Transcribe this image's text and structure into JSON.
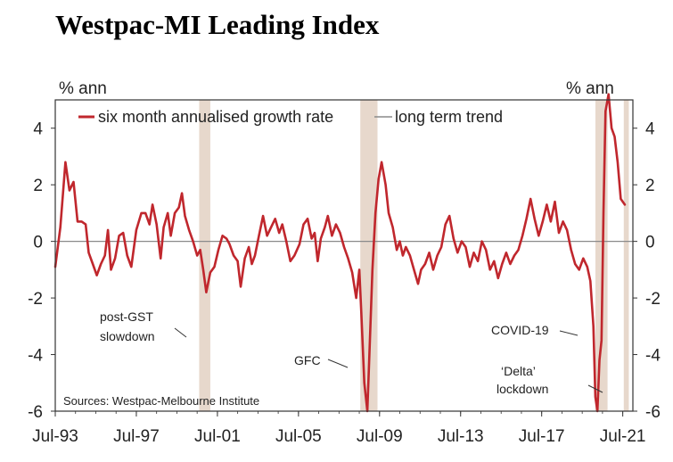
{
  "chart_data": {
    "type": "line",
    "title": "Westpac-MI Leading Index",
    "title_color": "#e02020",
    "left_unit": "% ann",
    "right_unit": "% ann",
    "ylim": [
      -6,
      5
    ],
    "yticks": [
      4,
      2,
      0,
      -2,
      -4,
      -6
    ],
    "xlim": [
      1993.5,
      2022.0
    ],
    "xticks": [
      {
        "label": "Jul-93",
        "x": 1993.5
      },
      {
        "label": "Jul-97",
        "x": 1997.5
      },
      {
        "label": "Jul-01",
        "x": 2001.5
      },
      {
        "label": "Jul-05",
        "x": 2005.5
      },
      {
        "label": "Jul-09",
        "x": 2009.5
      },
      {
        "label": "Jul-13",
        "x": 2013.5
      },
      {
        "label": "Jul-17",
        "x": 2017.5
      },
      {
        "label": "Jul-21",
        "x": 2021.5
      }
    ],
    "legend": [
      {
        "name": "six month annualised growth rate",
        "color": "#c0272d"
      },
      {
        "name": "long term trend",
        "color": "#8a8a8a"
      }
    ],
    "trend_value": 0,
    "shaded_periods": [
      {
        "start": 2000.6,
        "end": 2001.15
      },
      {
        "start": 2008.55,
        "end": 2009.4
      },
      {
        "start": 2020.15,
        "end": 2020.75
      },
      {
        "start": 2021.55,
        "end": 2021.8
      }
    ],
    "shade_color": "#e7d8cc",
    "series": [
      {
        "name": "six month annualised growth rate",
        "color": "#c0272d",
        "points": [
          [
            1993.5,
            -0.9
          ],
          [
            1993.75,
            0.5
          ],
          [
            1994.0,
            2.8
          ],
          [
            1994.2,
            1.8
          ],
          [
            1994.4,
            2.1
          ],
          [
            1994.6,
            0.7
          ],
          [
            1994.8,
            0.7
          ],
          [
            1995.0,
            0.6
          ],
          [
            1995.15,
            -0.4
          ],
          [
            1995.35,
            -0.8
          ],
          [
            1995.55,
            -1.2
          ],
          [
            1995.75,
            -0.8
          ],
          [
            1995.95,
            -0.5
          ],
          [
            1996.1,
            0.4
          ],
          [
            1996.25,
            -1.0
          ],
          [
            1996.45,
            -0.6
          ],
          [
            1996.65,
            0.2
          ],
          [
            1996.85,
            0.3
          ],
          [
            1997.05,
            -0.5
          ],
          [
            1997.25,
            -0.9
          ],
          [
            1997.5,
            0.4
          ],
          [
            1997.75,
            1.0
          ],
          [
            1997.95,
            1.0
          ],
          [
            1998.15,
            0.6
          ],
          [
            1998.3,
            1.3
          ],
          [
            1998.5,
            0.6
          ],
          [
            1998.7,
            -0.6
          ],
          [
            1998.85,
            0.5
          ],
          [
            1999.05,
            1.0
          ],
          [
            1999.2,
            0.2
          ],
          [
            1999.4,
            1.0
          ],
          [
            1999.6,
            1.2
          ],
          [
            1999.75,
            1.7
          ],
          [
            1999.9,
            0.9
          ],
          [
            2000.1,
            0.4
          ],
          [
            2000.3,
            0.0
          ],
          [
            2000.5,
            -0.5
          ],
          [
            2000.65,
            -0.3
          ],
          [
            2000.8,
            -1.0
          ],
          [
            2000.95,
            -1.8
          ],
          [
            2001.15,
            -1.1
          ],
          [
            2001.35,
            -0.9
          ],
          [
            2001.55,
            -0.3
          ],
          [
            2001.75,
            0.2
          ],
          [
            2001.95,
            0.1
          ],
          [
            2002.1,
            -0.1
          ],
          [
            2002.3,
            -0.5
          ],
          [
            2002.5,
            -0.7
          ],
          [
            2002.65,
            -1.6
          ],
          [
            2002.85,
            -0.6
          ],
          [
            2003.05,
            -0.2
          ],
          [
            2003.2,
            -0.8
          ],
          [
            2003.35,
            -0.5
          ],
          [
            2003.55,
            0.2
          ],
          [
            2003.75,
            0.9
          ],
          [
            2003.95,
            0.2
          ],
          [
            2004.15,
            0.5
          ],
          [
            2004.35,
            0.8
          ],
          [
            2004.55,
            0.3
          ],
          [
            2004.7,
            0.6
          ],
          [
            2004.9,
            0.0
          ],
          [
            2005.1,
            -0.7
          ],
          [
            2005.3,
            -0.5
          ],
          [
            2005.55,
            -0.1
          ],
          [
            2005.75,
            0.6
          ],
          [
            2005.95,
            0.8
          ],
          [
            2006.15,
            0.1
          ],
          [
            2006.3,
            0.3
          ],
          [
            2006.45,
            -0.7
          ],
          [
            2006.6,
            0.1
          ],
          [
            2006.8,
            0.5
          ],
          [
            2006.95,
            0.9
          ],
          [
            2007.15,
            0.2
          ],
          [
            2007.35,
            0.6
          ],
          [
            2007.55,
            0.3
          ],
          [
            2007.75,
            -0.2
          ],
          [
            2007.95,
            -0.6
          ],
          [
            2008.15,
            -1.1
          ],
          [
            2008.35,
            -2.0
          ],
          [
            2008.5,
            -1.0
          ],
          [
            2008.6,
            -2.5
          ],
          [
            2008.75,
            -5.0
          ],
          [
            2008.9,
            -6.0
          ],
          [
            2009.0,
            -4.0
          ],
          [
            2009.15,
            -1.0
          ],
          [
            2009.3,
            1.0
          ],
          [
            2009.45,
            2.2
          ],
          [
            2009.6,
            2.8
          ],
          [
            2009.8,
            2.0
          ],
          [
            2009.95,
            1.0
          ],
          [
            2010.15,
            0.5
          ],
          [
            2010.35,
            -0.3
          ],
          [
            2010.5,
            0.0
          ],
          [
            2010.65,
            -0.5
          ],
          [
            2010.8,
            -0.2
          ],
          [
            2011.0,
            -0.5
          ],
          [
            2011.2,
            -1.0
          ],
          [
            2011.4,
            -1.5
          ],
          [
            2011.55,
            -1.0
          ],
          [
            2011.75,
            -0.8
          ],
          [
            2011.95,
            -0.4
          ],
          [
            2012.15,
            -1.0
          ],
          [
            2012.35,
            -0.5
          ],
          [
            2012.55,
            -0.2
          ],
          [
            2012.75,
            0.6
          ],
          [
            2012.95,
            0.9
          ],
          [
            2013.15,
            0.1
          ],
          [
            2013.35,
            -0.4
          ],
          [
            2013.55,
            0.0
          ],
          [
            2013.75,
            -0.2
          ],
          [
            2013.95,
            -0.9
          ],
          [
            2014.15,
            -0.4
          ],
          [
            2014.35,
            -0.7
          ],
          [
            2014.55,
            0.0
          ],
          [
            2014.75,
            -0.3
          ],
          [
            2014.95,
            -1.0
          ],
          [
            2015.15,
            -0.7
          ],
          [
            2015.35,
            -1.3
          ],
          [
            2015.55,
            -0.8
          ],
          [
            2015.75,
            -0.4
          ],
          [
            2015.95,
            -0.8
          ],
          [
            2016.15,
            -0.5
          ],
          [
            2016.35,
            -0.3
          ],
          [
            2016.55,
            0.2
          ],
          [
            2016.75,
            0.8
          ],
          [
            2016.95,
            1.5
          ],
          [
            2017.15,
            0.8
          ],
          [
            2017.35,
            0.2
          ],
          [
            2017.55,
            0.7
          ],
          [
            2017.75,
            1.3
          ],
          [
            2017.95,
            0.7
          ],
          [
            2018.15,
            1.4
          ],
          [
            2018.35,
            0.3
          ],
          [
            2018.55,
            0.7
          ],
          [
            2018.75,
            0.4
          ],
          [
            2018.95,
            -0.3
          ],
          [
            2019.15,
            -0.8
          ],
          [
            2019.35,
            -1.0
          ],
          [
            2019.55,
            -0.6
          ],
          [
            2019.75,
            -0.9
          ],
          [
            2019.9,
            -1.4
          ],
          [
            2020.05,
            -3.0
          ],
          [
            2020.15,
            -5.5
          ],
          [
            2020.25,
            -6.0
          ],
          [
            2020.35,
            -4.2
          ],
          [
            2020.45,
            -3.5
          ],
          [
            2020.55,
            1.0
          ],
          [
            2020.65,
            4.6
          ],
          [
            2020.8,
            5.2
          ],
          [
            2020.95,
            4.0
          ],
          [
            2021.1,
            3.7
          ],
          [
            2021.25,
            2.8
          ],
          [
            2021.4,
            1.5
          ],
          [
            2021.6,
            1.3
          ]
        ]
      }
    ],
    "annotations": [
      {
        "text": "post-GST",
        "line": 1
      },
      {
        "text": "slowdown",
        "line": 2
      },
      {
        "text": "GFC",
        "line": 1
      },
      {
        "text": "COVID-19",
        "line": 1
      },
      {
        "text": "‘Delta’",
        "line": 1
      },
      {
        "text": "lockdown",
        "line": 2
      }
    ],
    "source": "Sources: Westpac-Melbourne Institute"
  }
}
